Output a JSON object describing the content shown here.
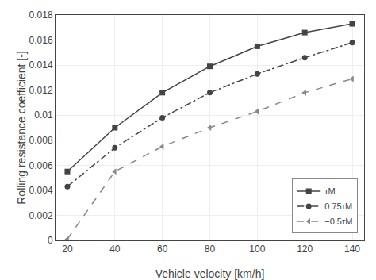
{
  "chart_data": {
    "type": "line",
    "x": [
      20,
      40,
      60,
      80,
      100,
      120,
      140
    ],
    "xlabel": "Vehicle velocity [km/h]",
    "ylabel": "Rolling resistance coefficient [-]",
    "xlim": [
      15,
      145
    ],
    "ylim": [
      0,
      0.018
    ],
    "xticks": [
      20,
      40,
      60,
      80,
      100,
      120,
      140
    ],
    "yticks": [
      0,
      0.002,
      0.004,
      0.006,
      0.008,
      0.01,
      0.012,
      0.014,
      0.016,
      0.018
    ],
    "grid": true,
    "legend": "lower right",
    "series": [
      {
        "name": "τM",
        "color": "#444444",
        "marker": "square",
        "line_style": "solid",
        "values": [
          0.0055,
          0.009,
          0.0118,
          0.0139,
          0.0155,
          0.0166,
          0.0173
        ]
      },
      {
        "name": "0.75τM",
        "color": "#444444",
        "marker": "circle",
        "line_style": "dashdot",
        "values": [
          0.0043,
          0.0074,
          0.0098,
          0.0118,
          0.0133,
          0.0146,
          0.0158
        ]
      },
      {
        "name": "−0.5τM",
        "color": "#888888",
        "marker": "triangle-left",
        "line_style": "dash",
        "values": [
          0.0001,
          0.0055,
          0.0075,
          0.009,
          0.0103,
          0.0118,
          0.0129
        ]
      }
    ]
  }
}
